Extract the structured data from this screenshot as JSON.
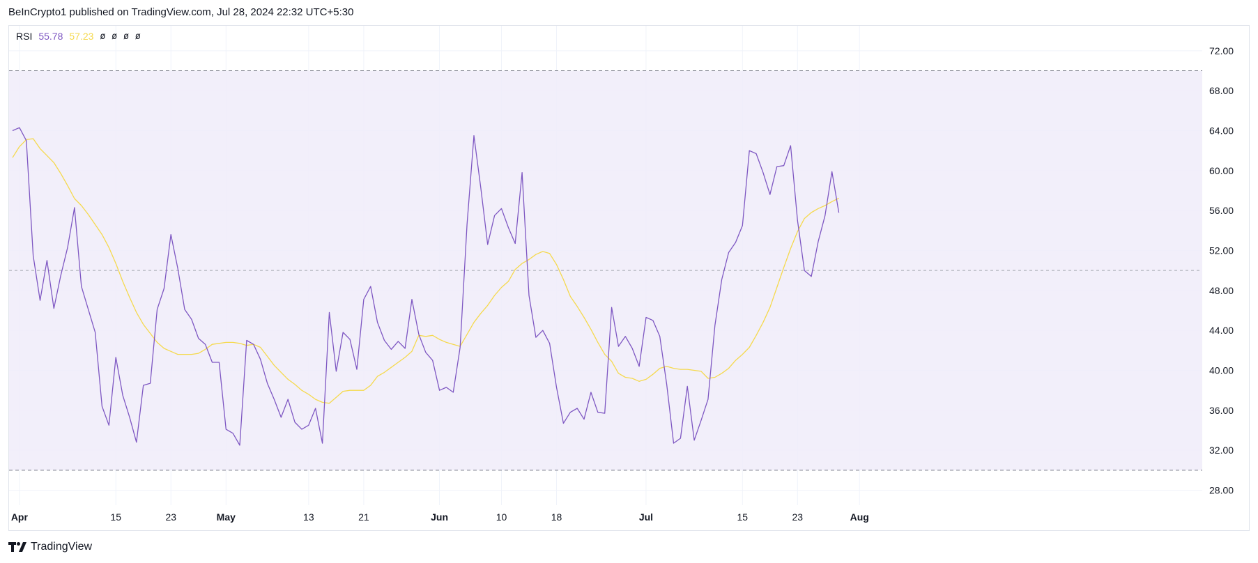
{
  "header": {
    "publisher": "BeInCrypto1 published on TradingView.com, Jul 28, 2024 22:32 UTC+5:30"
  },
  "legend": {
    "indicator": "RSI",
    "rsi_value": "55.78",
    "ma_value": "57.23",
    "na_values": [
      "ø",
      "ø",
      "ø",
      "ø"
    ]
  },
  "footer": {
    "brand": "TradingView"
  },
  "colors": {
    "rsi_line": "#7e57c2",
    "ma_line": "#f5d94d",
    "band_fill": "#f0ecf9",
    "band_border": "#787b86",
    "grid": "#f0f3fa",
    "axis_text": "#131722"
  },
  "chart_data": {
    "type": "line",
    "x_start": "2024-03-31",
    "x_ticks": [
      {
        "label": "Apr",
        "date": "2024-04-01",
        "bold": true
      },
      {
        "label": "15",
        "date": "2024-04-15",
        "bold": false
      },
      {
        "label": "23",
        "date": "2024-04-23",
        "bold": false
      },
      {
        "label": "May",
        "date": "2024-05-01",
        "bold": true
      },
      {
        "label": "13",
        "date": "2024-05-13",
        "bold": false
      },
      {
        "label": "21",
        "date": "2024-05-21",
        "bold": false
      },
      {
        "label": "Jun",
        "date": "2024-06-01",
        "bold": true
      },
      {
        "label": "10",
        "date": "2024-06-10",
        "bold": false
      },
      {
        "label": "18",
        "date": "2024-06-18",
        "bold": false
      },
      {
        "label": "Jul",
        "date": "2024-07-01",
        "bold": true
      },
      {
        "label": "15",
        "date": "2024-07-15",
        "bold": false
      },
      {
        "label": "23",
        "date": "2024-07-23",
        "bold": false
      },
      {
        "label": "Aug",
        "date": "2024-08-01",
        "bold": true
      }
    ],
    "y_ticks": [
      "72.00",
      "68.00",
      "64.00",
      "60.00",
      "56.00",
      "52.00",
      "48.00",
      "44.00",
      "40.00",
      "36.00",
      "32.00",
      "28.00"
    ],
    "ylim": [
      26.5,
      74.5
    ],
    "bands": {
      "upper": 70,
      "middle": 50,
      "lower": 30
    },
    "grid": true,
    "series": [
      {
        "name": "RSI",
        "values": [
          64,
          64.3,
          63,
          51.5,
          47,
          51,
          46.2,
          49.5,
          52.3,
          56.3,
          48.4,
          46.1,
          43.8,
          36.4,
          34.5,
          41.3,
          37.5,
          35.3,
          32.8,
          38.5,
          38.7,
          46.1,
          48.2,
          53.6,
          50.2,
          46.1,
          45.1,
          43.2,
          42.6,
          40.8,
          40.8,
          34.1,
          33.7,
          32.5,
          43,
          42.6,
          41.1,
          38.7,
          37.1,
          35.3,
          37.1,
          34.8,
          34.1,
          34.5,
          36.2,
          32.7,
          45.8,
          39.9,
          43.8,
          43.1,
          40.1,
          47.1,
          48.4,
          44.8,
          43,
          42.1,
          42.9,
          42.2,
          47.1,
          43.6,
          41.8,
          41,
          38,
          38.3,
          37.8,
          42.3,
          54.6,
          63.5,
          58.3,
          52.6,
          55.5,
          56.2,
          54.3,
          52.7,
          59.8,
          47.5,
          43.3,
          44,
          42.7,
          38.3,
          34.7,
          35.8,
          36.2,
          35.1,
          37.8,
          35.8,
          35.7,
          46.3,
          42.4,
          43.4,
          42.2,
          40.4,
          45.3,
          45,
          43.4,
          38.6,
          32.7,
          33.2,
          38.4,
          33,
          35,
          37.1,
          44.5,
          49.1,
          51.8,
          52.8,
          54.5,
          62,
          61.7,
          59.8,
          57.6,
          60.4,
          60.5,
          62.5,
          55,
          50,
          49.4,
          52.9,
          55.5,
          59.9,
          55.78
        ]
      },
      {
        "name": "RSI-based MA",
        "values": [
          61.3,
          62.4,
          63.1,
          63.2,
          62.2,
          61.5,
          60.8,
          59.7,
          58.5,
          57.2,
          56.5,
          55.6,
          54.6,
          53.6,
          52.3,
          50.7,
          48.9,
          47.3,
          45.8,
          44.6,
          43.7,
          42.8,
          42.2,
          41.9,
          41.6,
          41.6,
          41.6,
          41.7,
          42.1,
          42.6,
          42.7,
          42.8,
          42.8,
          42.7,
          42.5,
          42.6,
          42.3,
          41.4,
          40.5,
          39.8,
          39.1,
          38.6,
          38,
          37.6,
          37.1,
          36.8,
          36.7,
          37.3,
          37.9,
          38,
          38,
          38,
          38.5,
          39.4,
          39.8,
          40.3,
          40.8,
          41.3,
          41.9,
          43.5,
          43.4,
          43.5,
          43.1,
          42.8,
          42.6,
          42.4,
          43.6,
          44.8,
          45.7,
          46.5,
          47.5,
          48.3,
          48.9,
          50.1,
          50.7,
          51.1,
          51.6,
          51.9,
          51.7,
          50.6,
          49.1,
          47.4,
          46.4,
          45.3,
          44.1,
          42.8,
          41.6,
          40.9,
          39.7,
          39.3,
          39.2,
          38.9,
          39.1,
          39.6,
          40.2,
          40.4,
          40.2,
          40.1,
          40.1,
          40,
          39.9,
          39.2,
          39.3,
          39.7,
          40.2,
          41,
          41.6,
          42.3,
          43.5,
          44.8,
          46.3,
          48.3,
          50.3,
          52.2,
          53.9,
          55.2,
          55.8,
          56.2,
          56.5,
          56.9,
          57.23
        ]
      }
    ]
  }
}
